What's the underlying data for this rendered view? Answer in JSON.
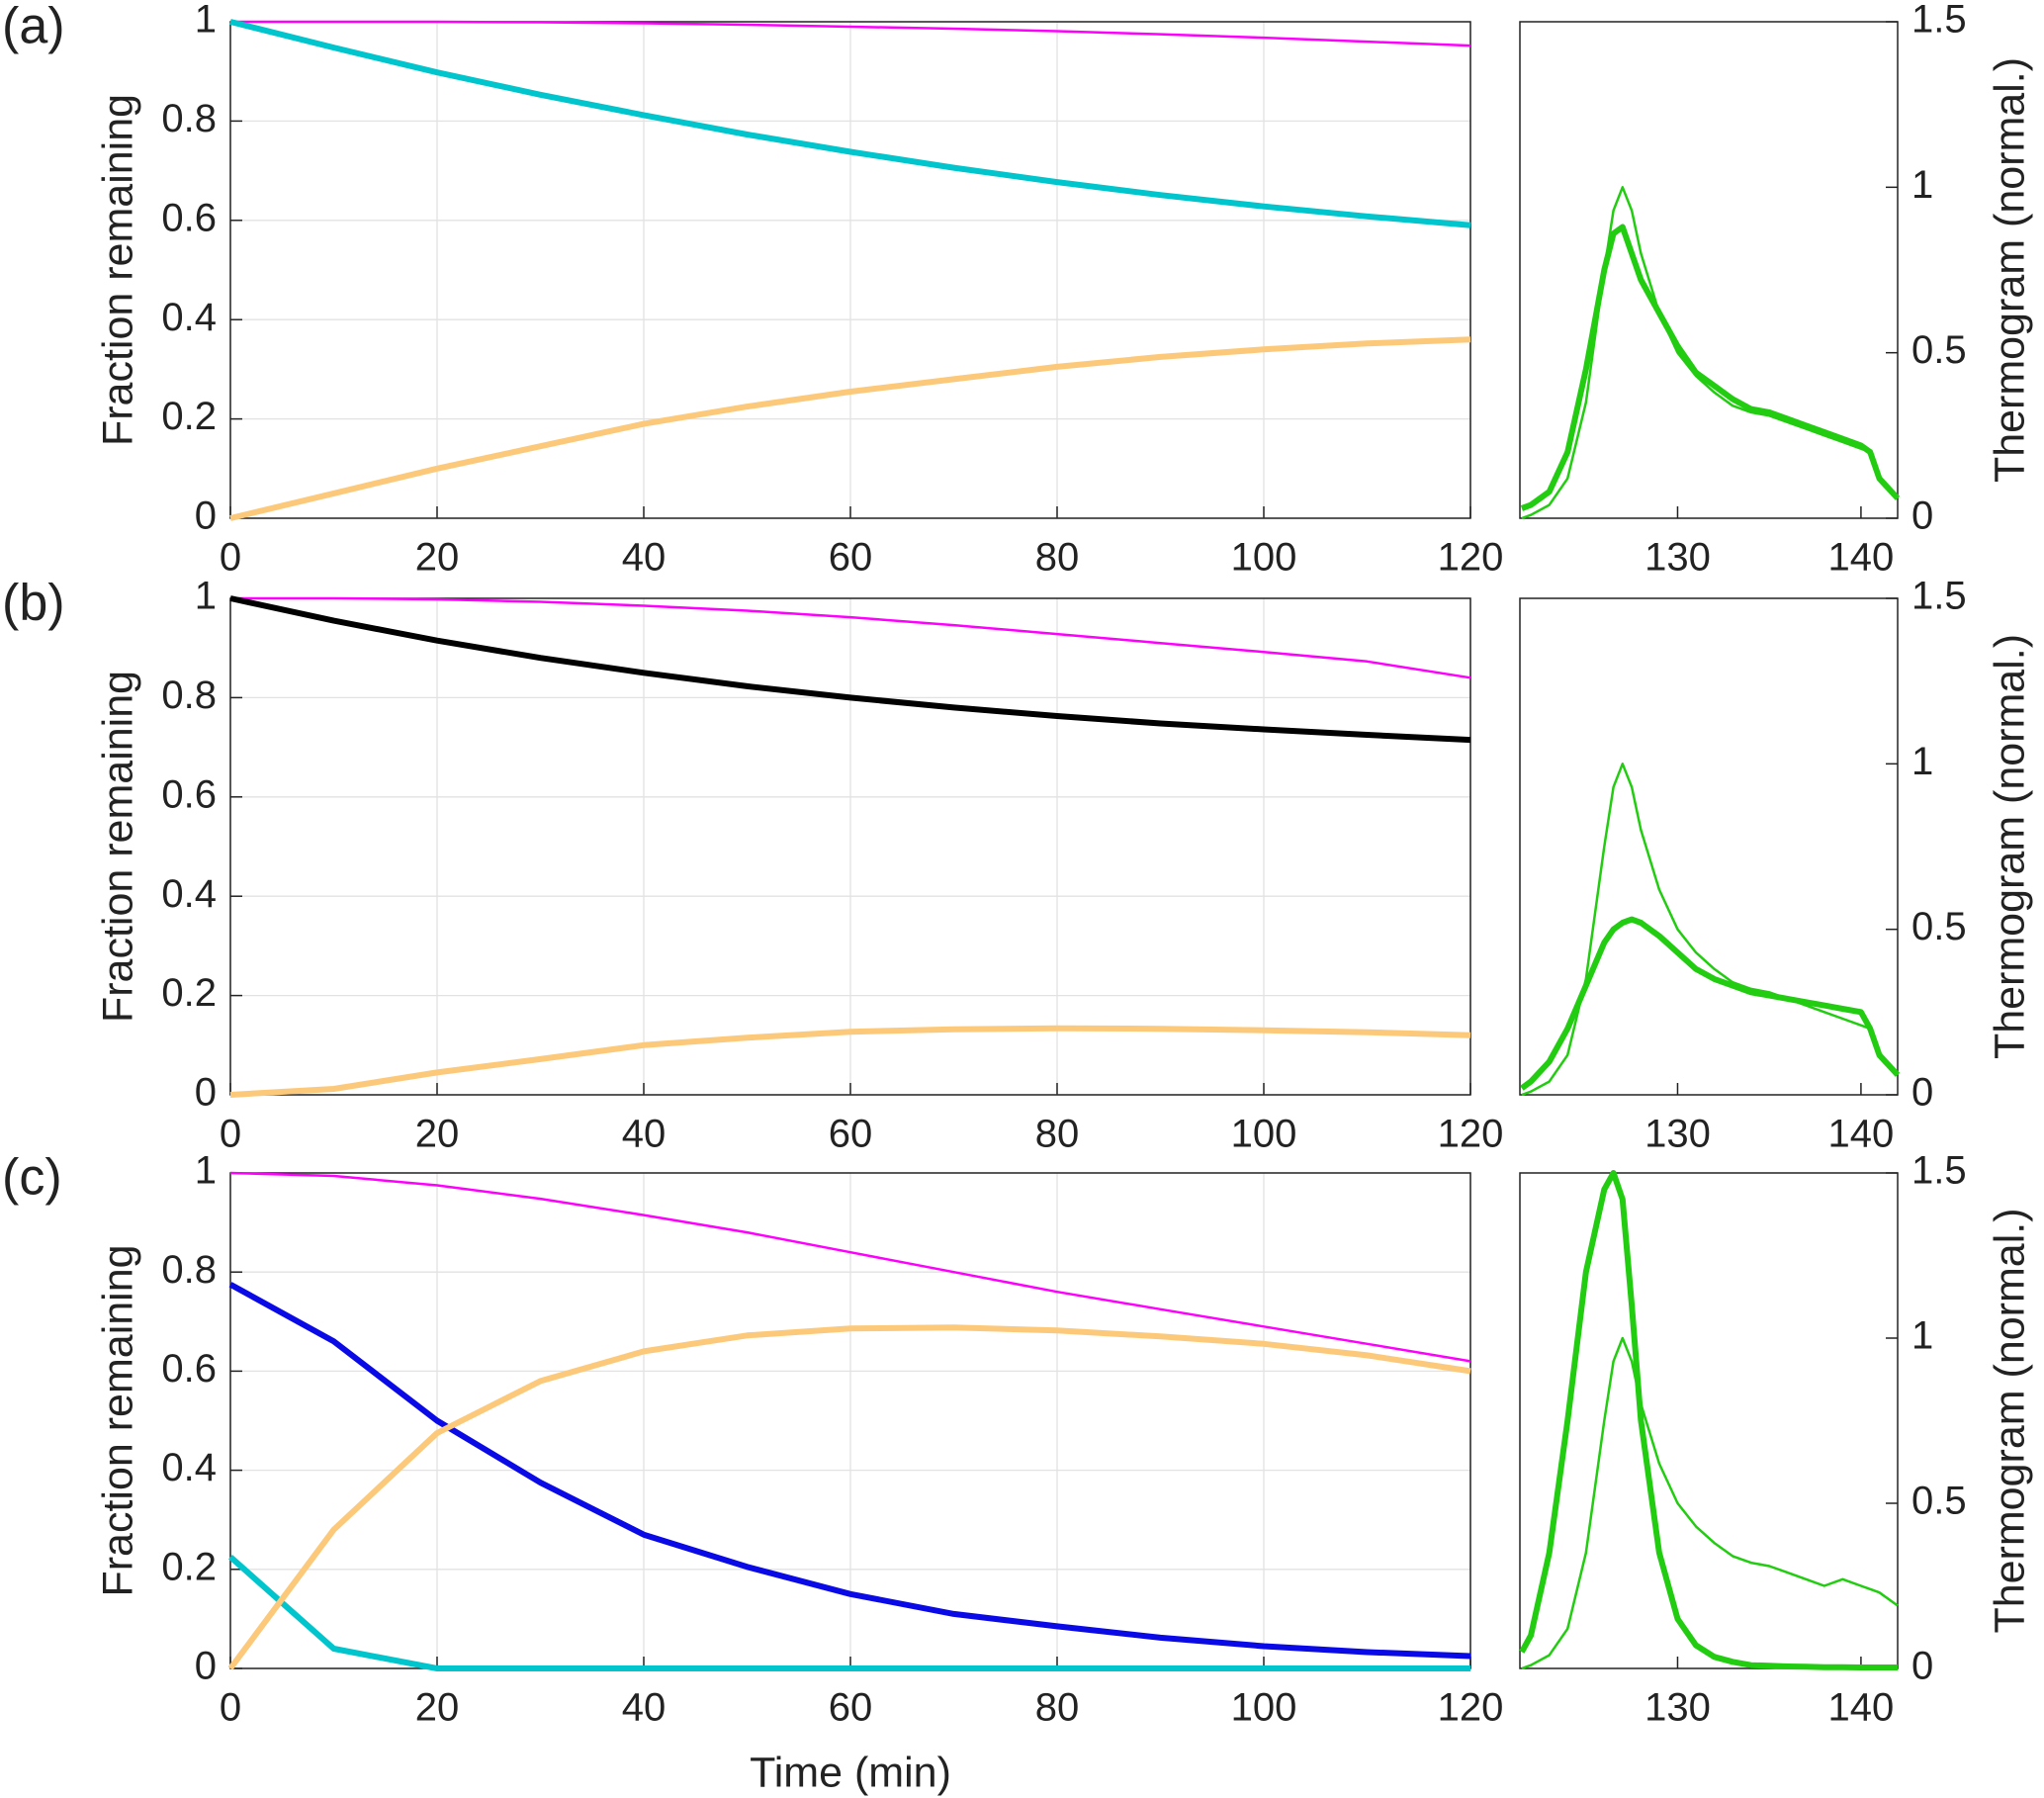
{
  "chart_data": [
    {
      "type": "line",
      "title": "(a)",
      "ylabel": "Fraction remaining",
      "y_side": "left",
      "x": [
        0,
        10,
        20,
        30,
        40,
        50,
        60,
        70,
        80,
        90,
        100,
        110,
        120
      ],
      "series": [
        {
          "color": "#ff00ff",
          "weight": "thin",
          "values": [
            1,
            1,
            1,
            0.999,
            0.997,
            0.994,
            0.99,
            0.986,
            0.981,
            0.975,
            0.968,
            0.96,
            0.952
          ]
        },
        {
          "color": "#00c5cd",
          "weight": "thick",
          "values": [
            1,
            0.948,
            0.898,
            0.853,
            0.812,
            0.773,
            0.738,
            0.706,
            0.677,
            0.651,
            0.628,
            0.608,
            0.59
          ]
        },
        {
          "color": "#fcc97a",
          "weight": "thick",
          "values": [
            0,
            0.05,
            0.1,
            0.145,
            0.19,
            0.225,
            0.255,
            0.28,
            0.305,
            0.325,
            0.34,
            0.352,
            0.36
          ]
        }
      ],
      "xlim": [
        0,
        120
      ],
      "ylim": [
        0,
        1
      ],
      "xticks": [
        0,
        20,
        40,
        60,
        80,
        100,
        120
      ],
      "yticks": [
        0,
        0.2,
        0.4,
        0.6,
        0.8,
        1
      ],
      "grid": true
    },
    {
      "type": "line",
      "ylabel": "Thermogram (normal.)",
      "y_side": "right",
      "x": [
        121.5,
        122,
        123,
        124,
        125,
        126,
        126.5,
        127,
        127.5,
        128,
        129,
        130,
        131,
        132,
        133,
        134,
        135,
        136,
        137,
        138,
        139,
        140,
        140.5,
        141,
        142
      ],
      "series": [
        {
          "color": "#22cc11",
          "weight": "thin",
          "values": [
            0,
            0.01,
            0.04,
            0.12,
            0.35,
            0.75,
            0.93,
            1.0,
            0.93,
            0.8,
            0.62,
            0.5,
            0.43,
            0.38,
            0.34,
            0.32,
            0.31,
            0.29,
            0.27,
            0.25,
            0.23,
            0.21,
            0.2,
            0.12,
            0.06
          ]
        },
        {
          "color": "#22cc11",
          "weight": "thick",
          "values": [
            0.03,
            0.04,
            0.08,
            0.2,
            0.45,
            0.75,
            0.86,
            0.88,
            0.8,
            0.72,
            0.62,
            0.52,
            0.44,
            0.4,
            0.36,
            0.33,
            0.32,
            0.3,
            0.28,
            0.26,
            0.24,
            0.22,
            0.2,
            0.12,
            0.06
          ]
        }
      ],
      "xlim": [
        121.4,
        142
      ],
      "ylim": [
        0,
        1.5
      ],
      "xticks": [
        130,
        140
      ],
      "yticks": [
        0,
        0.5,
        1,
        1.5
      ],
      "grid": false
    },
    {
      "type": "line",
      "title": "(b)",
      "ylabel": "Fraction remaining",
      "y_side": "left",
      "x": [
        0,
        10,
        20,
        30,
        40,
        50,
        60,
        70,
        80,
        90,
        100,
        110,
        120
      ],
      "series": [
        {
          "color": "#ff00ff",
          "weight": "thin",
          "values": [
            1,
            1,
            0.998,
            0.993,
            0.985,
            0.975,
            0.962,
            0.946,
            0.928,
            0.91,
            0.892,
            0.873,
            0.84
          ]
        },
        {
          "color": "#000000",
          "weight": "thick",
          "values": [
            1,
            0.955,
            0.915,
            0.88,
            0.85,
            0.823,
            0.8,
            0.78,
            0.763,
            0.748,
            0.736,
            0.725,
            0.715
          ]
        },
        {
          "color": "#fcc97a",
          "weight": "thick",
          "values": [
            0,
            0.012,
            0.045,
            0.072,
            0.1,
            0.115,
            0.127,
            0.132,
            0.134,
            0.133,
            0.13,
            0.126,
            0.12
          ]
        }
      ],
      "xlim": [
        0,
        120
      ],
      "ylim": [
        0,
        1
      ],
      "xticks": [
        0,
        20,
        40,
        60,
        80,
        100,
        120
      ],
      "yticks": [
        0,
        0.2,
        0.4,
        0.6,
        0.8,
        1
      ],
      "grid": true
    },
    {
      "type": "line",
      "ylabel": "Thermogram (normal.)",
      "y_side": "right",
      "x": [
        121.5,
        122,
        123,
        124,
        125,
        126,
        126.5,
        127,
        127.5,
        128,
        129,
        130,
        131,
        132,
        133,
        134,
        135,
        136,
        137,
        138,
        139,
        140,
        140.5,
        141,
        142
      ],
      "series": [
        {
          "color": "#22cc11",
          "weight": "thin",
          "values": [
            0,
            0.01,
            0.04,
            0.12,
            0.35,
            0.75,
            0.93,
            1.0,
            0.93,
            0.8,
            0.62,
            0.5,
            0.43,
            0.38,
            0.34,
            0.32,
            0.31,
            0.29,
            0.27,
            0.25,
            0.23,
            0.21,
            0.2,
            0.12,
            0.06
          ]
        },
        {
          "color": "#22cc11",
          "weight": "thick",
          "values": [
            0.02,
            0.04,
            0.1,
            0.2,
            0.33,
            0.46,
            0.5,
            0.52,
            0.53,
            0.52,
            0.48,
            0.43,
            0.38,
            0.35,
            0.33,
            0.31,
            0.3,
            0.29,
            0.28,
            0.27,
            0.26,
            0.25,
            0.2,
            0.12,
            0.06
          ]
        }
      ],
      "xlim": [
        121.4,
        142
      ],
      "ylim": [
        0,
        1.5
      ],
      "xticks": [
        130,
        140
      ],
      "yticks": [
        0,
        0.5,
        1,
        1.5
      ],
      "grid": false
    },
    {
      "type": "line",
      "title": "(c)",
      "ylabel": "Fraction remaining",
      "xlabel": "Time (min)",
      "y_side": "left",
      "x": [
        0,
        10,
        20,
        30,
        40,
        50,
        60,
        70,
        80,
        90,
        100,
        110,
        120
      ],
      "series": [
        {
          "color": "#ff00ff",
          "weight": "thin",
          "values": [
            1,
            0.994,
            0.975,
            0.948,
            0.915,
            0.88,
            0.84,
            0.8,
            0.76,
            0.725,
            0.69,
            0.655,
            0.62
          ]
        },
        {
          "color": "#0a0ae6",
          "weight": "thick",
          "values": [
            0.775,
            0.66,
            0.5,
            0.375,
            0.27,
            0.205,
            0.15,
            0.11,
            0.085,
            0.062,
            0.045,
            0.033,
            0.025
          ]
        },
        {
          "color": "#00c5cd",
          "weight": "thick",
          "values": [
            0.225,
            0.04,
            0,
            0,
            0,
            0,
            0,
            0,
            0,
            0,
            0,
            0,
            0
          ]
        },
        {
          "color": "#fcc97a",
          "weight": "thick",
          "values": [
            0,
            0.28,
            0.475,
            0.58,
            0.64,
            0.672,
            0.686,
            0.688,
            0.682,
            0.67,
            0.655,
            0.632,
            0.6
          ]
        }
      ],
      "xlim": [
        0,
        120
      ],
      "ylim": [
        0,
        1
      ],
      "xticks": [
        0,
        20,
        40,
        60,
        80,
        100,
        120
      ],
      "yticks": [
        0,
        0.2,
        0.4,
        0.6,
        0.8,
        1
      ],
      "grid": true
    },
    {
      "type": "line",
      "ylabel": "Thermogram (normal.)",
      "y_side": "right",
      "x": [
        121.5,
        122,
        123,
        124,
        125,
        126,
        126.5,
        127,
        127.5,
        128,
        129,
        130,
        131,
        132,
        133,
        134,
        135,
        136,
        137,
        138,
        139,
        140,
        140.5,
        141,
        142
      ],
      "series": [
        {
          "color": "#22cc11",
          "weight": "thin",
          "values": [
            0,
            0.01,
            0.04,
            0.12,
            0.35,
            0.75,
            0.93,
            1.0,
            0.93,
            0.8,
            0.62,
            0.5,
            0.43,
            0.38,
            0.34,
            0.32,
            0.31,
            0.29,
            0.27,
            0.25,
            0.27,
            0.25,
            0.24,
            0.23,
            0.19
          ]
        },
        {
          "color": "#22cc11",
          "weight": "thick",
          "values": [
            0.05,
            0.1,
            0.35,
            0.75,
            1.2,
            1.45,
            1.5,
            1.42,
            1.1,
            0.75,
            0.35,
            0.15,
            0.07,
            0.035,
            0.02,
            0.01,
            0.008,
            0.006,
            0.005,
            0.004,
            0.004,
            0.003,
            0.003,
            0.003,
            0.003
          ]
        }
      ],
      "xlim": [
        121.4,
        142
      ],
      "ylim": [
        0,
        1.5
      ],
      "xticks": [
        130,
        140
      ],
      "yticks": [
        0,
        0.5,
        1,
        1.5
      ],
      "grid": false
    }
  ]
}
